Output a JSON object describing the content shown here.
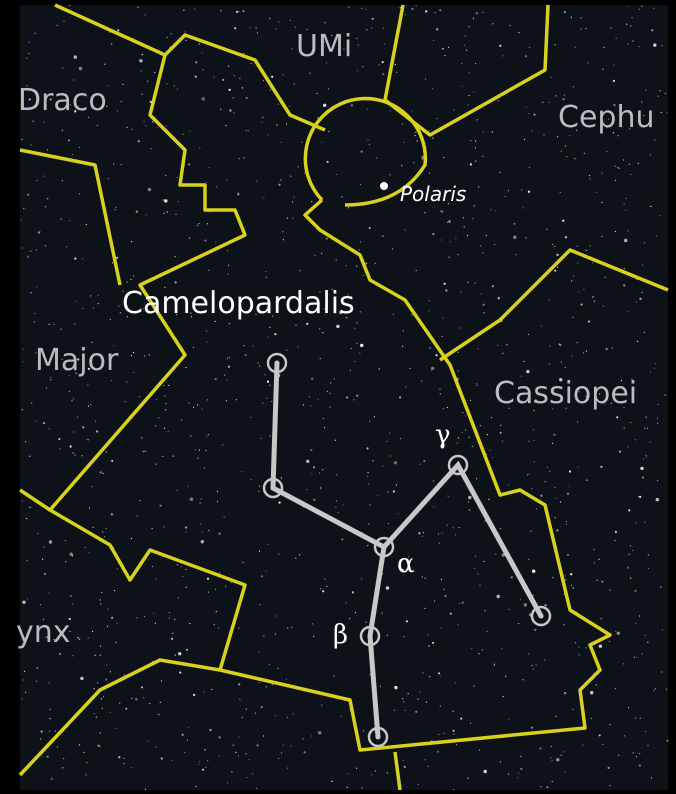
{
  "constellations": [
    "UMi",
    "Draco",
    "Cephu",
    "Camelopardalis",
    "Major",
    "Cassiopei",
    "ynx"
  ],
  "stars": [
    "Polaris",
    "γ",
    "α",
    "β"
  ]
}
